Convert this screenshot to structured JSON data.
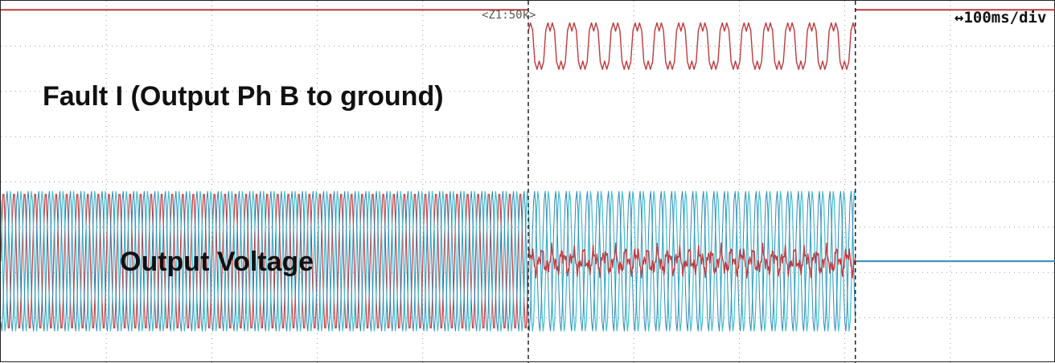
{
  "header": {
    "zoom_label": "<Z1:50k>",
    "timebase_label": "↔100ms/div"
  },
  "annotations": {
    "fault_current_label": "Fault I (Output Ph B to ground)",
    "output_voltage_label": "Output Voltage"
  },
  "colors": {
    "background": "#ffffff",
    "grid": "#9a9a9a",
    "fault_current_trace": "#c0393d",
    "voltage_phase_a": "#3fc0d0",
    "voltage_phase_b": "#c0393d",
    "voltage_phase_c": "#2f86b8",
    "cursor": "#222222"
  },
  "chart_data": {
    "type": "line",
    "title": "",
    "xlabel": "",
    "ylabel": "",
    "time_per_div_ms": 100,
    "divisions": {
      "horizontal": 10,
      "vertical": 8
    },
    "grid": true,
    "cursors_div": [
      5.0,
      8.1
    ],
    "series": [
      {
        "name": "Fault I (Output Ph B to ground)",
        "segments": [
          {
            "t_start_div": 0.0,
            "t_end_div": 5.0,
            "kind": "flat",
            "level_div": 3.8
          },
          {
            "t_start_div": 5.0,
            "t_end_div": 8.1,
            "kind": "oscillation",
            "center_div": 3.0,
            "amplitude_div": 0.55,
            "cycles": 15
          },
          {
            "t_start_div": 8.1,
            "t_end_div": 10.0,
            "kind": "flat",
            "level_div": 3.8
          }
        ]
      },
      {
        "name": "Output Voltage",
        "segments": [
          {
            "t_start_div": 0.0,
            "t_end_div": 5.0,
            "kind": "three_phase",
            "center_div": -1.75,
            "amplitude_div": 1.55,
            "cycles": 50
          },
          {
            "t_start_div": 5.0,
            "t_end_div": 8.1,
            "kind": "two_phase_with_collapsed_phase_b",
            "center_div": -1.75,
            "amplitude_div": 1.55,
            "phase_b_amplitude_div": 0.3,
            "cycles": 31
          },
          {
            "t_start_div": 8.1,
            "t_end_div": 10.0,
            "kind": "flat",
            "level_div": -1.75
          }
        ]
      }
    ]
  }
}
